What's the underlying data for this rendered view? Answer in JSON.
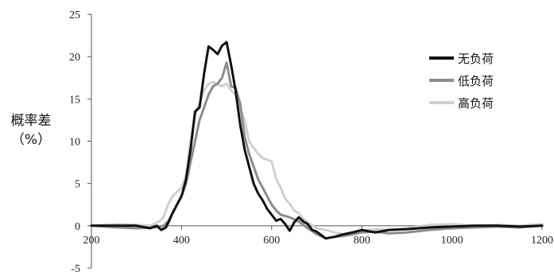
{
  "chart_data": {
    "type": "line",
    "title": "",
    "xlabel": "",
    "ylabel_line1": "概率差",
    "ylabel_line2": "（%）",
    "xlim": [
      200,
      1200
    ],
    "ylim": [
      -5,
      25
    ],
    "x_ticks": [
      200,
      400,
      600,
      800,
      1000,
      1200
    ],
    "y_ticks": [
      -5,
      0,
      5,
      10,
      15,
      20,
      25
    ],
    "x_tick_labels": [
      "200",
      "400",
      "600",
      "800",
      "1000",
      "1200"
    ],
    "y_tick_labels": [
      "-5",
      "0",
      "5",
      "10",
      "15",
      "20",
      "25"
    ],
    "grid": false,
    "legend_position": "top-right",
    "series": [
      {
        "name": "无负荷",
        "color": "#111111",
        "x": [
          200,
          260,
          300,
          330,
          345,
          355,
          365,
          372,
          380,
          390,
          400,
          410,
          420,
          430,
          440,
          450,
          460,
          470,
          480,
          490,
          500,
          510,
          520,
          530,
          540,
          550,
          560,
          570,
          580,
          590,
          600,
          610,
          620,
          630,
          640,
          650,
          660,
          670,
          680,
          690,
          700,
          720,
          740,
          760,
          780,
          800,
          830,
          860,
          900,
          950,
          1000,
          1050,
          1100,
          1150,
          1200
        ],
        "y": [
          0,
          0,
          0,
          -0.3,
          0,
          -0.5,
          -0.2,
          0.5,
          1.5,
          2.5,
          3.5,
          5.5,
          9.0,
          13.5,
          14.0,
          18.0,
          21.2,
          20.8,
          20.3,
          21.3,
          21.7,
          19.0,
          16.0,
          12.0,
          9.0,
          7.0,
          5.0,
          3.8,
          3.0,
          2.0,
          1.3,
          0.6,
          0.8,
          0.2,
          -0.6,
          0.4,
          1.0,
          0.5,
          0.2,
          -0.5,
          -0.7,
          -1.5,
          -1.3,
          -1.0,
          -0.8,
          -0.5,
          -0.8,
          -0.5,
          -0.4,
          -0.2,
          -0.1,
          0,
          0,
          -0.1,
          0
        ]
      },
      {
        "name": "低负荷",
        "color": "#8c8c8c",
        "x": [
          200,
          260,
          300,
          340,
          360,
          370,
          380,
          390,
          400,
          410,
          420,
          430,
          440,
          450,
          460,
          470,
          480,
          490,
          500,
          510,
          520,
          530,
          540,
          550,
          560,
          570,
          580,
          590,
          600,
          610,
          620,
          640,
          660,
          680,
          700,
          720,
          740,
          760,
          780,
          800,
          830,
          860,
          900,
          950,
          1000,
          1050,
          1100,
          1150,
          1200
        ],
        "y": [
          0,
          -0.2,
          -0.3,
          -0.2,
          0,
          0.5,
          1.5,
          2.5,
          3.5,
          5.0,
          7.5,
          10.0,
          12.5,
          14.0,
          15.5,
          16.5,
          16.8,
          17.5,
          19.3,
          16.5,
          16.3,
          14.5,
          10.5,
          8.5,
          7.0,
          5.5,
          4.5,
          3.5,
          2.5,
          1.8,
          1.3,
          1.0,
          0.5,
          -0.3,
          -1.0,
          -1.5,
          -1.3,
          -1.2,
          -1.0,
          -0.8,
          -0.7,
          -0.9,
          -0.8,
          -0.5,
          -0.3,
          -0.2,
          -0.1,
          -0.2,
          0
        ]
      },
      {
        "name": "高负荷",
        "color": "#d0d0d0",
        "x": [
          200,
          260,
          300,
          330,
          350,
          360,
          370,
          380,
          390,
          400,
          410,
          420,
          430,
          440,
          450,
          460,
          470,
          480,
          490,
          500,
          510,
          520,
          530,
          540,
          550,
          560,
          570,
          580,
          590,
          600,
          610,
          620,
          630,
          640,
          650,
          660,
          670,
          680,
          700,
          720,
          740,
          760,
          780,
          800,
          830,
          860,
          900,
          950,
          1000,
          1050,
          1100,
          1150,
          1200
        ],
        "y": [
          0,
          0.2,
          0.1,
          0,
          0.5,
          1.0,
          2.5,
          3.5,
          4.0,
          4.5,
          6.0,
          10.0,
          13.0,
          14.5,
          16.0,
          16.8,
          17.0,
          16.7,
          16.5,
          16.8,
          16.0,
          15.5,
          14.0,
          12.5,
          10.0,
          9.2,
          8.5,
          8.0,
          7.8,
          7.6,
          5.5,
          4.5,
          3.2,
          2.6,
          1.8,
          1.5,
          0.8,
          0.4,
          -0.3,
          -0.5,
          -0.8,
          -1.0,
          -0.7,
          -0.6,
          -0.4,
          -0.5,
          -0.3,
          0.1,
          0.2,
          0,
          0.1,
          0,
          0.2
        ]
      }
    ]
  }
}
